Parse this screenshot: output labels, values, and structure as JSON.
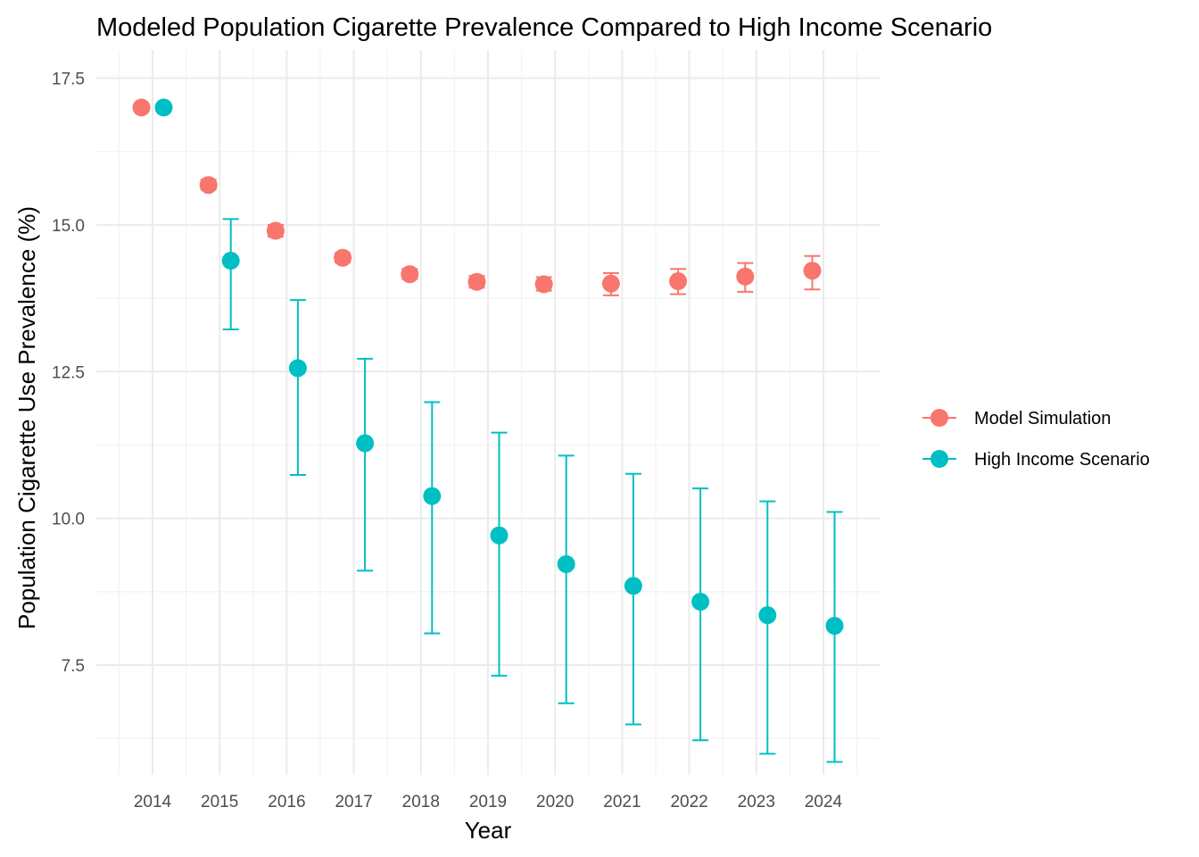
{
  "chart_data": {
    "type": "scatter",
    "title": "Modeled Population Cigarette Prevalence Compared to High Income Scenario",
    "xlabel": "Year",
    "ylabel": "Population Cigarette Use Prevalence (%)",
    "x": [
      2014,
      2015,
      2016,
      2017,
      2018,
      2019,
      2020,
      2021,
      2022,
      2023,
      2024
    ],
    "x_tick_labels": [
      "2014",
      "2015",
      "2016",
      "2017",
      "2018",
      "2019",
      "2020",
      "2021",
      "2022",
      "2023",
      "2024"
    ],
    "y_ticks": [
      7.5,
      10.0,
      12.5,
      15.0,
      17.5
    ],
    "y_tick_labels": [
      "7.5",
      "10.0",
      "12.5",
      "15.0",
      "17.5"
    ],
    "ylim": [
      5.63,
      17.98
    ],
    "grid": true,
    "legend_position": "right",
    "series": [
      {
        "name": "Model Simulation",
        "color": "#F8766D",
        "values": [
          17.0,
          15.68,
          14.9,
          14.44,
          14.16,
          14.03,
          13.99,
          14.0,
          14.04,
          14.12,
          14.22
        ],
        "lower": [
          17.0,
          15.6,
          14.8,
          14.36,
          14.08,
          13.93,
          13.88,
          13.8,
          13.82,
          13.86,
          13.9
        ],
        "upper": [
          17.0,
          15.77,
          15.0,
          14.52,
          14.25,
          14.13,
          14.11,
          14.18,
          14.25,
          14.35,
          14.47
        ]
      },
      {
        "name": "High Income Scenario",
        "color": "#00BFC4",
        "values": [
          17.0,
          14.39,
          12.56,
          11.28,
          10.38,
          9.71,
          9.22,
          8.85,
          8.58,
          8.35,
          8.17
        ],
        "lower": [
          17.0,
          13.22,
          10.74,
          9.11,
          8.04,
          7.32,
          6.85,
          6.49,
          6.22,
          5.99,
          5.85
        ],
        "upper": [
          17.0,
          15.1,
          13.72,
          12.72,
          11.98,
          11.46,
          11.07,
          10.76,
          10.51,
          10.29,
          10.11
        ]
      }
    ]
  }
}
